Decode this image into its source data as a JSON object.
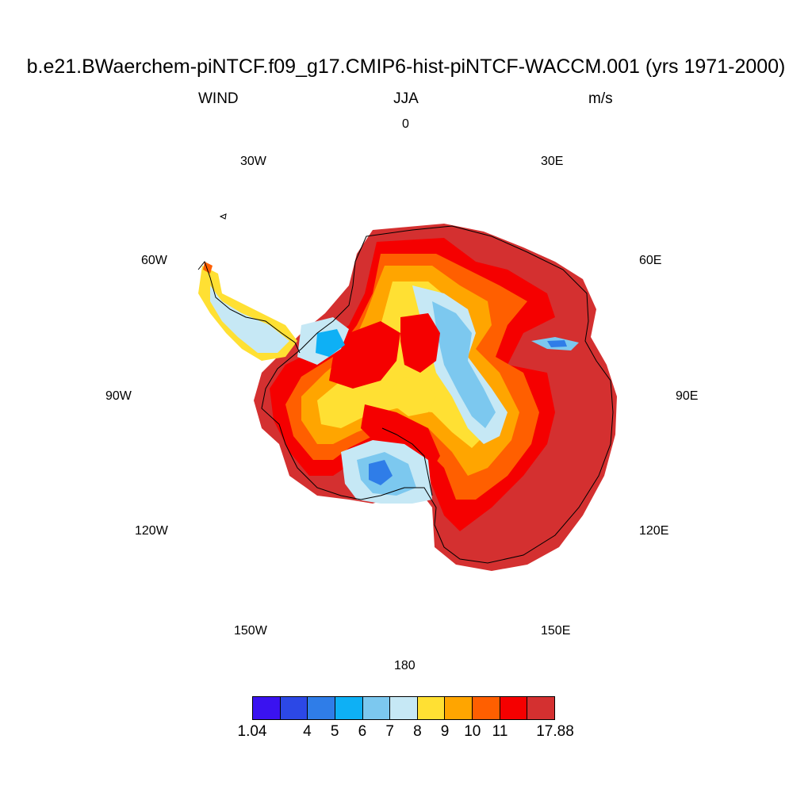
{
  "title": "b.e21.BWaerchem-piNTCF.f09_g17.CMIP6-hist-piNTCF-WACCM.001 (yrs 1971-2000)",
  "left_label": "WIND",
  "center_label": "JJA",
  "right_label": "m/s",
  "longitude_labels": {
    "lon_0": "0",
    "lon_30e": "30E",
    "lon_60e": "60E",
    "lon_90e": "90E",
    "lon_120e": "120E",
    "lon_150e": "150E",
    "lon_180": "180",
    "lon_150w": "150W",
    "lon_120w": "120W",
    "lon_90w": "90W",
    "lon_60w": "60W",
    "lon_30w": "30W"
  },
  "colorbar": {
    "colors": [
      "#3a12f0",
      "#2c48e6",
      "#2f7de8",
      "#0eb0f5",
      "#7cc8ef",
      "#c6e8f5",
      "#ffe033",
      "#ffa500",
      "#ff5f00",
      "#f50000",
      "#d43030"
    ],
    "labels": [
      "1.04",
      "4",
      "5",
      "6",
      "7",
      "8",
      "9",
      "10",
      "11",
      "17.88"
    ]
  },
  "map": {
    "projection": "south-polar-stereographic",
    "field": "wind speed",
    "note_colors": {
      "coast": "#000000"
    }
  }
}
